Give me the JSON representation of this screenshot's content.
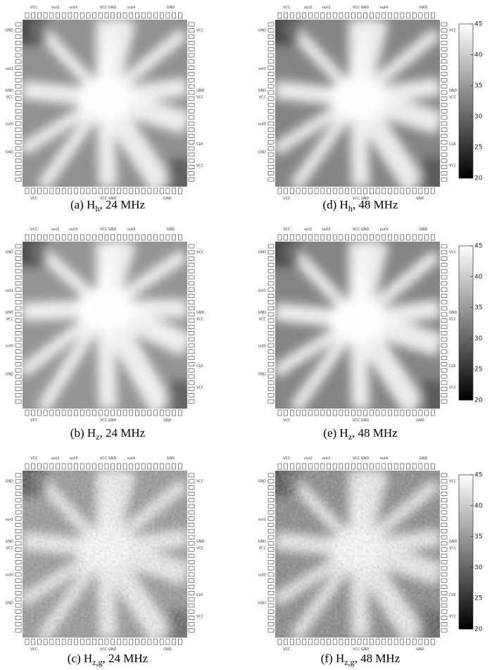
{
  "panels": [
    {
      "prefix": "(a) H",
      "sub": "h",
      "suffix": ", 24 MHz"
    },
    {
      "prefix": "(b) H",
      "sub": "z",
      "suffix": ", 24 MHz"
    },
    {
      "prefix": "(c) H",
      "sub": "z,g",
      "suffix": ", 24 MHz"
    },
    {
      "prefix": "(d) H",
      "sub": "h",
      "suffix": ", 48 MHz"
    },
    {
      "prefix": "(e) H",
      "sub": "z",
      "suffix": ", 48 MHz"
    },
    {
      "prefix": "(f) H",
      "sub": "z,g",
      "suffix": ", 48 MHz"
    }
  ],
  "pins": {
    "top": [
      "VCC",
      "out2",
      "out3",
      "VCC GND",
      "out4",
      "GND"
    ],
    "bottom": [
      "VCC",
      "VCC GND",
      "GND"
    ],
    "left": [
      "GND",
      "out1",
      "GND",
      "VCC",
      "out0",
      "GND"
    ],
    "right": [
      "VCC",
      "GND",
      "VCC",
      "CLK",
      "VCC"
    ]
  },
  "colorbar": {
    "lim": [
      20,
      45
    ],
    "ticks": [
      20,
      25,
      30,
      35,
      40,
      45
    ]
  }
}
